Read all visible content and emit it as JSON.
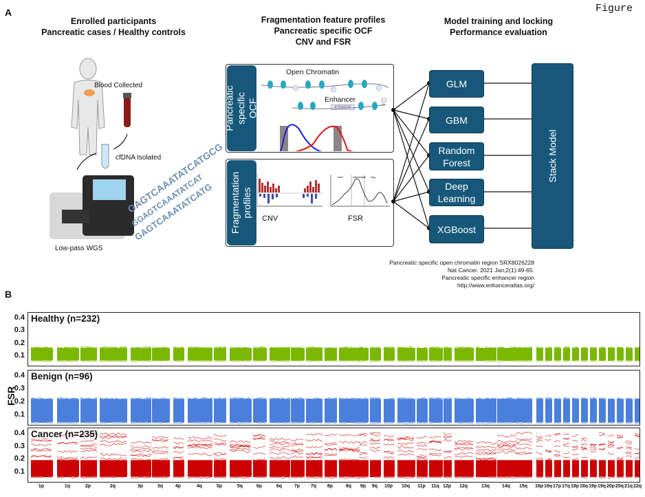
{
  "figure_label": "Figure",
  "panel_a": {
    "letter": "A",
    "col1": {
      "line1": "Enrolled participants",
      "line2": "Pancreatic cases / Healthy controls"
    },
    "col2": {
      "line1": "Fragmentation feature profiles",
      "line2": "Pancreatic specific OCF",
      "line3": "CNV and FSR"
    },
    "col3": {
      "line1": "Model training and locking",
      "line2": "Performance evaluation"
    },
    "illustration": {
      "blood": "Blood Collected",
      "cfdna": "cfDNA Isolated",
      "wgs": "Low-pass WGS",
      "dna_sequences": [
        "GAGTCAAATATCATGCG",
        "GGAGTCAAATATCAT",
        "GAGTCAAATATCATG"
      ]
    },
    "ocf_box": {
      "tab": "Pancreatic specific OCF",
      "open_chromatin": "Open Chromatin",
      "enhancer": "Enhancer",
      "enhancer_tag": "enhancer"
    },
    "frag_box": {
      "tab": "Fragmentation profiles",
      "cnv": "CNV",
      "fsr": "FSR",
      "fsr_regions": [
        "short",
        "intermediate",
        "long"
      ]
    },
    "models": [
      "GLM",
      "GBM",
      "Random Forest",
      "Deep Learning",
      "XGBoost"
    ],
    "stack_model": "Stack Model",
    "references": [
      "Pancreatic specific open chromatin region SRX8026228",
      "Nat Cancer. 2021 Jan;2(1):49-65.",
      "Pancreatic specific enhancer region",
      "http://www.enhanceratlas.org/"
    ],
    "colors": {
      "model_fill": "#17587a",
      "ocf_red": "#e02020",
      "ocf_blue": "#2020e0"
    }
  },
  "panel_b": {
    "letter": "B"
  },
  "chart_data": {
    "type": "line",
    "ylabel": "FSR",
    "yticks": [
      0.1,
      0.2,
      0.3,
      0.4
    ],
    "ylim": [
      0.04,
      0.42
    ],
    "categories": [
      "1p",
      "1q",
      "2p",
      "2q",
      "3p",
      "3q",
      "4p",
      "4q",
      "5p",
      "5q",
      "6p",
      "6q",
      "7p",
      "7q",
      "8p",
      "8q",
      "9p",
      "9q",
      "10p",
      "10q",
      "11p",
      "11q",
      "12p",
      "12q",
      "13q",
      "14q",
      "15q",
      "16p",
      "16q",
      "17p",
      "17q",
      "18p",
      "18q",
      "19p",
      "19q",
      "20p",
      "20q",
      "21q",
      "22q"
    ],
    "series": [
      {
        "name": "Healthy (n=232)",
        "color": "#7ab800",
        "range": [
          0.07,
          0.17
        ]
      },
      {
        "name": "Benign (n=96)",
        "color": "#4a7fdc",
        "range": [
          0.05,
          0.23
        ]
      },
      {
        "name": "Cancer (n=235)",
        "color": "#cc0000",
        "range": [
          0.07,
          0.41
        ]
      }
    ]
  }
}
